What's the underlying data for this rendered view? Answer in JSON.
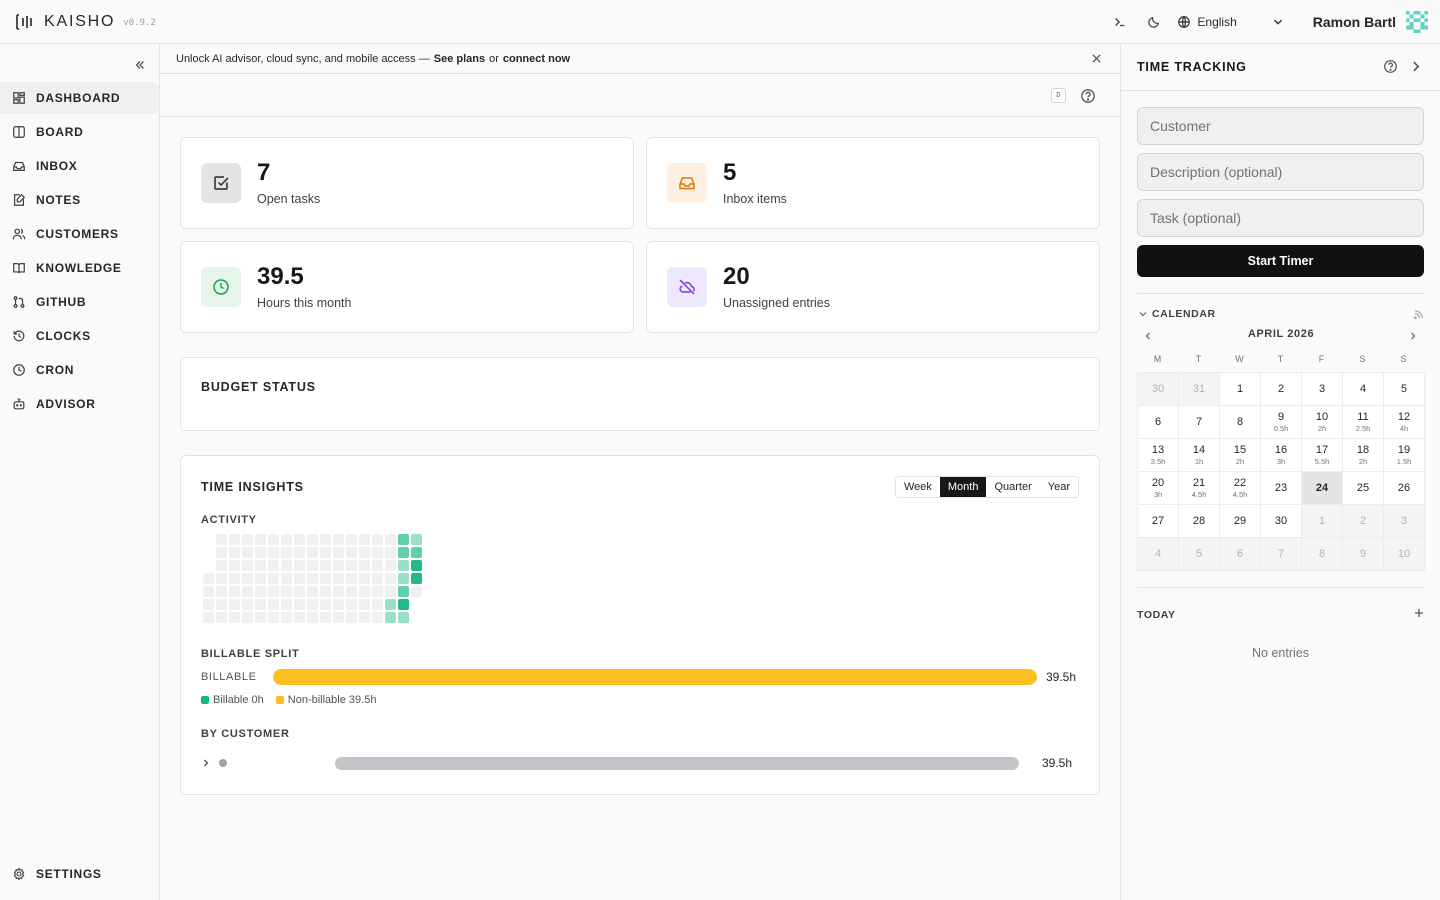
{
  "app": {
    "name": "KAISHO",
    "version": "v0.9.2"
  },
  "header": {
    "language": "English",
    "user_name": "Ramon Bartl"
  },
  "sidebar": {
    "items": [
      {
        "label": "DASHBOARD",
        "icon": "dashboard-icon",
        "active": true
      },
      {
        "label": "BOARD",
        "icon": "board-icon",
        "active": false
      },
      {
        "label": "INBOX",
        "icon": "inbox-icon",
        "active": false
      },
      {
        "label": "NOTES",
        "icon": "notes-icon",
        "active": false
      },
      {
        "label": "CUSTOMERS",
        "icon": "users-icon",
        "active": false
      },
      {
        "label": "KNOWLEDGE",
        "icon": "book-icon",
        "active": false
      },
      {
        "label": "GITHUB",
        "icon": "git-pull-request-icon",
        "active": false
      },
      {
        "label": "CLOCKS",
        "icon": "history-icon",
        "active": false
      },
      {
        "label": "CRON",
        "icon": "clock-icon",
        "active": false
      },
      {
        "label": "ADVISOR",
        "icon": "bot-icon",
        "active": false
      }
    ],
    "settings_label": "SETTINGS"
  },
  "banner": {
    "text": "Unlock AI advisor, cloud sync, and mobile access —",
    "plans_link": "See plans",
    "or": "or",
    "connect_link": "connect now"
  },
  "toolbar": {
    "kbd": "D"
  },
  "stats": [
    {
      "value": "7",
      "label": "Open tasks",
      "icon": "check-square-icon",
      "bg": "#e4e4e7",
      "fg": "#27272a"
    },
    {
      "value": "5",
      "label": "Inbox items",
      "icon": "inbox-icon",
      "bg": "#fdf0e1",
      "fg": "#d97706"
    },
    {
      "value": "39.5",
      "label": "Hours this month",
      "icon": "clock-icon",
      "bg": "#e6f4ea",
      "fg": "#16a34a"
    },
    {
      "value": "20",
      "label": "Unassigned entries",
      "icon": "cloud-off-icon",
      "bg": "#efe7fb",
      "fg": "#7c3aed"
    }
  ],
  "budget": {
    "title": "BUDGET STATUS"
  },
  "insights": {
    "title": "TIME INSIGHTS",
    "ranges": [
      "Week",
      "Month",
      "Quarter",
      "Year"
    ],
    "active_range": "Month",
    "activity_title": "ACTIVITY",
    "activity_levels": {
      "weeks": 17,
      "active_cells": [
        {
          "week": 14,
          "day": 5,
          "level": 1
        },
        {
          "week": 14,
          "day": 6,
          "level": 1
        },
        {
          "week": 15,
          "day": 0,
          "level": 2
        },
        {
          "week": 15,
          "day": 1,
          "level": 2
        },
        {
          "week": 15,
          "day": 2,
          "level": 1
        },
        {
          "week": 15,
          "day": 3,
          "level": 1
        },
        {
          "week": 15,
          "day": 4,
          "level": 2
        },
        {
          "week": 15,
          "day": 5,
          "level": 3
        },
        {
          "week": 15,
          "day": 6,
          "level": 1
        },
        {
          "week": 16,
          "day": 0,
          "level": 1
        },
        {
          "week": 16,
          "day": 1,
          "level": 2
        },
        {
          "week": 16,
          "day": 2,
          "level": 3
        },
        {
          "week": 16,
          "day": 3,
          "level": 3
        }
      ]
    },
    "split_title": "BILLABLE SPLIT",
    "split_label": "BILLABLE",
    "split_value": "39.5h",
    "split_fraction_nonbillable": 1.0,
    "legend_billable": "Billable 0h",
    "legend_nonbillable": "Non-billable 39.5h",
    "colors": {
      "billable": "#10b981",
      "nonbillable": "#fbbf24"
    },
    "by_customer_title": "BY CUSTOMER",
    "customer_value": "39.5h",
    "customer_fraction": 1.0
  },
  "time_tracking": {
    "title": "TIME TRACKING",
    "customer_placeholder": "Customer",
    "description_placeholder": "Description (optional)",
    "task_placeholder": "Task (optional)",
    "start_label": "Start Timer",
    "calendar_label": "CALENDAR",
    "month": "APRIL 2026",
    "dow": [
      "M",
      "T",
      "W",
      "T",
      "F",
      "S",
      "S"
    ],
    "days": [
      {
        "d": "30",
        "h": "",
        "other": true
      },
      {
        "d": "31",
        "h": "",
        "other": true
      },
      {
        "d": "1",
        "h": ""
      },
      {
        "d": "2",
        "h": ""
      },
      {
        "d": "3",
        "h": ""
      },
      {
        "d": "4",
        "h": ""
      },
      {
        "d": "5",
        "h": ""
      },
      {
        "d": "6",
        "h": ""
      },
      {
        "d": "7",
        "h": ""
      },
      {
        "d": "8",
        "h": ""
      },
      {
        "d": "9",
        "h": "0.5h"
      },
      {
        "d": "10",
        "h": "2h"
      },
      {
        "d": "11",
        "h": "2.5h"
      },
      {
        "d": "12",
        "h": "4h"
      },
      {
        "d": "13",
        "h": "3.5h"
      },
      {
        "d": "14",
        "h": "1h"
      },
      {
        "d": "15",
        "h": "2h"
      },
      {
        "d": "16",
        "h": "3h"
      },
      {
        "d": "17",
        "h": "5.5h"
      },
      {
        "d": "18",
        "h": "2h"
      },
      {
        "d": "19",
        "h": "1.5h"
      },
      {
        "d": "20",
        "h": "3h"
      },
      {
        "d": "21",
        "h": "4.5h"
      },
      {
        "d": "22",
        "h": "4.5h"
      },
      {
        "d": "23",
        "h": ""
      },
      {
        "d": "24",
        "h": "",
        "today": true
      },
      {
        "d": "25",
        "h": ""
      },
      {
        "d": "26",
        "h": ""
      },
      {
        "d": "27",
        "h": ""
      },
      {
        "d": "28",
        "h": ""
      },
      {
        "d": "29",
        "h": ""
      },
      {
        "d": "30",
        "h": ""
      },
      {
        "d": "1",
        "h": "",
        "other": true
      },
      {
        "d": "2",
        "h": "",
        "other": true
      },
      {
        "d": "3",
        "h": "",
        "other": true
      },
      {
        "d": "4",
        "h": "",
        "other": true
      },
      {
        "d": "5",
        "h": "",
        "other": true
      },
      {
        "d": "6",
        "h": "",
        "other": true
      },
      {
        "d": "7",
        "h": "",
        "other": true
      },
      {
        "d": "8",
        "h": "",
        "other": true
      },
      {
        "d": "9",
        "h": "",
        "other": true
      },
      {
        "d": "10",
        "h": "",
        "other": true
      }
    ],
    "today_label": "TODAY",
    "no_entries": "No entries"
  }
}
